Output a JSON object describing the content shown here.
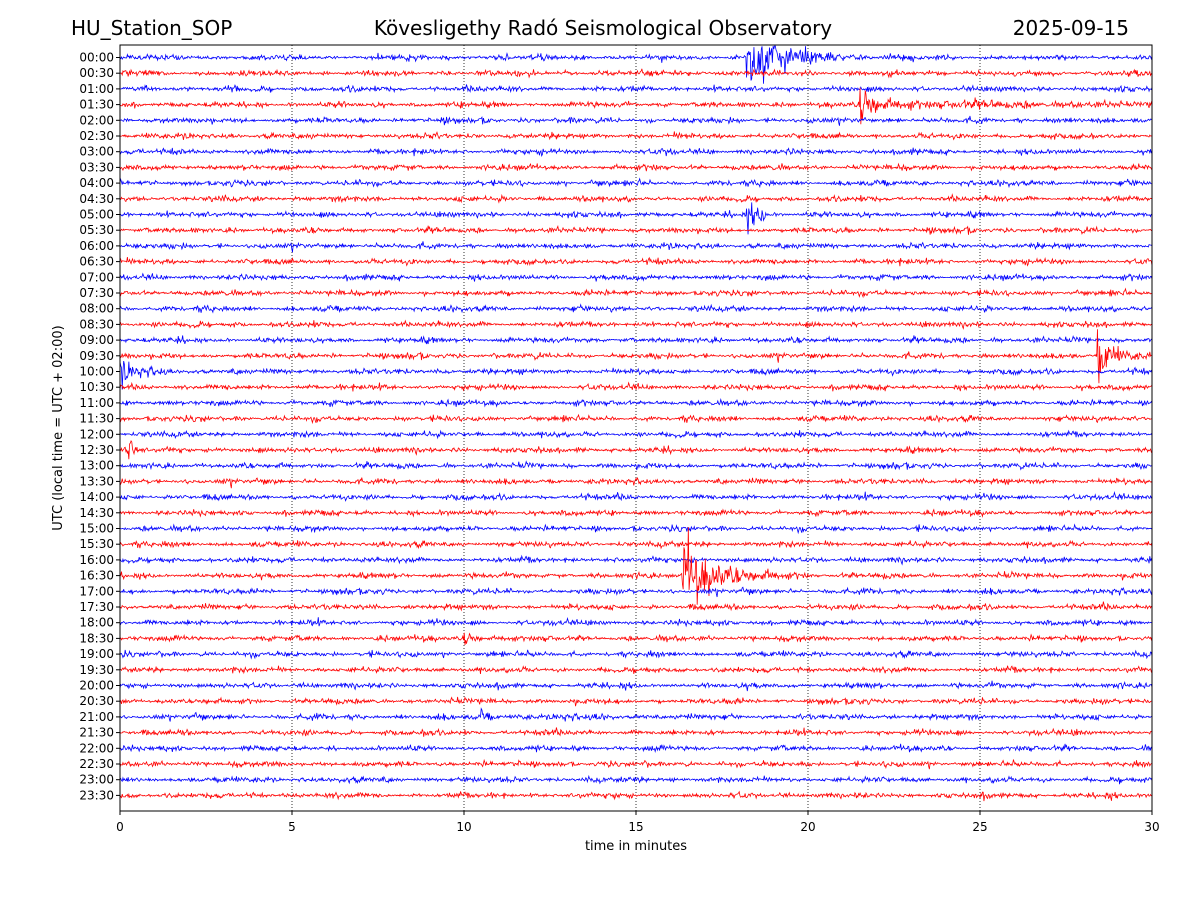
{
  "header": {
    "station": "HU_Station_SOP",
    "observatory": "Kövesligethy Radó Seismological Observatory",
    "date": "2025-09-15"
  },
  "chart_data": {
    "type": "line",
    "kind": "helicorder",
    "xlabel": "time in minutes",
    "ylabel": "UTC (local time = UTC + 02:00)",
    "xlim": [
      0,
      30
    ],
    "x_ticks": [
      0,
      5,
      10,
      15,
      20,
      25,
      30
    ],
    "x_tick_labels": [
      "0",
      "5",
      "10",
      "15",
      "20",
      "25",
      "30"
    ],
    "grid": "vertical dotted at 5-minute intervals",
    "row_labels": [
      "00:00",
      "00:30",
      "01:00",
      "01:30",
      "02:00",
      "02:30",
      "03:00",
      "03:30",
      "04:00",
      "04:30",
      "05:00",
      "05:30",
      "06:00",
      "06:30",
      "07:00",
      "07:30",
      "08:00",
      "08:30",
      "09:00",
      "09:30",
      "10:00",
      "10:30",
      "11:00",
      "11:30",
      "12:00",
      "12:30",
      "13:00",
      "13:30",
      "14:00",
      "14:30",
      "15:00",
      "15:30",
      "16:00",
      "16:30",
      "17:00",
      "17:30",
      "18:00",
      "18:30",
      "19:00",
      "19:30",
      "20:00",
      "20:30",
      "21:00",
      "21:30",
      "22:00",
      "22:30",
      "23:00",
      "23:30"
    ],
    "trace_colors": [
      "#0000ff",
      "#ff0000"
    ],
    "events": [
      {
        "row": "00:00",
        "start_min": 18.2,
        "duration_min": 3.5,
        "amplitude": 2.2,
        "decay": 1.2
      },
      {
        "row": "01:30",
        "start_min": 21.5,
        "duration_min": 9.0,
        "amplitude": 1.6,
        "decay": 2.8
      },
      {
        "row": "05:00",
        "start_min": 18.2,
        "duration_min": 0.6,
        "amplitude": 0.7,
        "decay": 0.3
      },
      {
        "row": "09:30",
        "start_min": 28.4,
        "duration_min": 1.6,
        "amplitude": 2.0,
        "decay": 3.0
      },
      {
        "row": "10:00",
        "start_min": 0.0,
        "duration_min": 2.0,
        "amplitude": 0.9,
        "decay": 3.0
      },
      {
        "row": "12:30",
        "start_min": 0.1,
        "duration_min": 0.4,
        "amplitude": 0.6,
        "decay": 0.5
      },
      {
        "row": "16:30",
        "start_min": 16.35,
        "duration_min": 4.0,
        "amplitude": 2.6,
        "decay": 1.5
      },
      {
        "row": "18:30",
        "start_min": 10.0,
        "duration_min": 2.0,
        "amplitude": 0.45,
        "decay": 3.0
      },
      {
        "row": "21:00",
        "start_min": 10.5,
        "duration_min": 6.5,
        "amplitude": 0.4,
        "decay": 6.0
      }
    ]
  }
}
